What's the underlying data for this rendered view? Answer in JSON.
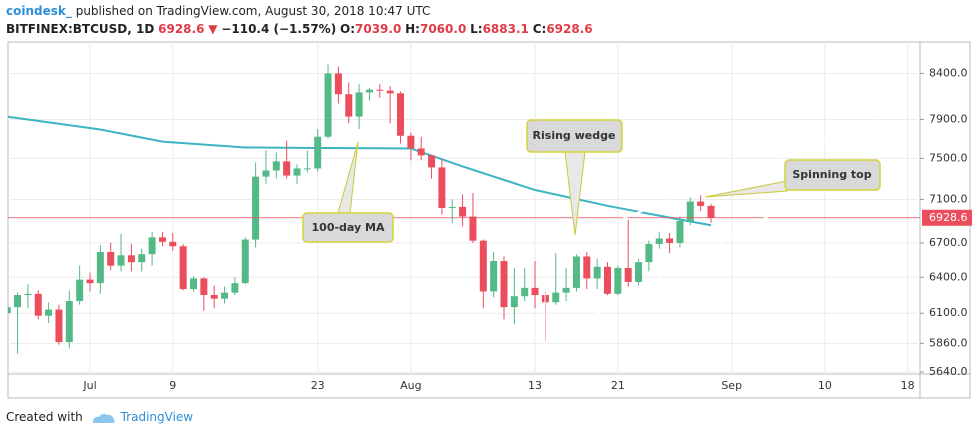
{
  "header": {
    "author": "coindesk_",
    "published": "published on TradingView.com, August 30, 2018 10:47 UTC",
    "symbol": "BITFINEX:BTCUSD, 1D",
    "last": "6928.6",
    "arrow": "▼",
    "change": "−110.4 (−1.57%)",
    "ohlc": [
      {
        "label": "O:",
        "value": "7039.0"
      },
      {
        "label": "H:",
        "value": "7060.0"
      },
      {
        "label": "L:",
        "value": "6883.1"
      },
      {
        "label": "C:",
        "value": "6928.6"
      }
    ]
  },
  "footer": {
    "created": "Created with",
    "brand": "TradingView"
  },
  "chart_data": {
    "type": "candlestick",
    "log_scale": true,
    "grid": true,
    "up_color": "#53b987",
    "down_color": "#eb4d5c",
    "x": [
      "2018-06-23",
      "2018-06-24",
      "2018-06-25",
      "2018-06-26",
      "2018-06-27",
      "2018-06-28",
      "2018-06-29",
      "2018-06-30",
      "2018-07-01",
      "2018-07-02",
      "2018-07-03",
      "2018-07-04",
      "2018-07-05",
      "2018-07-06",
      "2018-07-07",
      "2018-07-08",
      "2018-07-09",
      "2018-07-10",
      "2018-07-11",
      "2018-07-12",
      "2018-07-13",
      "2018-07-14",
      "2018-07-15",
      "2018-07-16",
      "2018-07-17",
      "2018-07-18",
      "2018-07-19",
      "2018-07-20",
      "2018-07-21",
      "2018-07-22",
      "2018-07-23",
      "2018-07-24",
      "2018-07-25",
      "2018-07-26",
      "2018-07-27",
      "2018-07-28",
      "2018-07-29",
      "2018-07-30",
      "2018-07-31",
      "2018-08-01",
      "2018-08-02",
      "2018-08-03",
      "2018-08-04",
      "2018-08-05",
      "2018-08-06",
      "2018-08-07",
      "2018-08-08",
      "2018-08-09",
      "2018-08-10",
      "2018-08-11",
      "2018-08-12",
      "2018-08-13",
      "2018-08-14",
      "2018-08-15",
      "2018-08-16",
      "2018-08-17",
      "2018-08-18",
      "2018-08-19",
      "2018-08-20",
      "2018-08-21",
      "2018-08-22",
      "2018-08-23",
      "2018-08-24",
      "2018-08-25",
      "2018-08-26",
      "2018-08-27",
      "2018-08-28",
      "2018-08-29",
      "2018-08-30"
    ],
    "open": [
      6100,
      6150,
      6250,
      6260,
      6080,
      6130,
      5870,
      6200,
      6380,
      6350,
      6620,
      6500,
      6590,
      6530,
      6600,
      6750,
      6710,
      6670,
      6300,
      6390,
      6250,
      6220,
      6270,
      6350,
      6730,
      7320,
      7380,
      7470,
      7330,
      7400,
      7400,
      7720,
      8400,
      8170,
      7930,
      8190,
      8220,
      8210,
      8180,
      7730,
      7600,
      7530,
      7410,
      7020,
      7030,
      6940,
      6720,
      6280,
      6540,
      6150,
      6240,
      6310,
      6250,
      6190,
      6270,
      6310,
      6580,
      6390,
      6490,
      6260,
      6480,
      6360,
      6530,
      6690,
      6740,
      6700,
      6900,
      7080,
      7039
    ],
    "high": [
      6250,
      6270,
      6340,
      6290,
      6190,
      6170,
      6290,
      6500,
      6440,
      6680,
      6700,
      6780,
      6690,
      6650,
      6800,
      6800,
      6790,
      6690,
      6410,
      6400,
      6330,
      6320,
      6400,
      6750,
      7460,
      7580,
      7560,
      7680,
      7440,
      7580,
      7800,
      8500,
      8480,
      8300,
      8280,
      8240,
      8280,
      8260,
      8200,
      7760,
      7720,
      7540,
      7500,
      7100,
      7150,
      7160,
      6730,
      6620,
      6580,
      6480,
      6480,
      6540,
      6280,
      6610,
      6480,
      6600,
      6620,
      6560,
      6530,
      6500,
      6910,
      6560,
      6720,
      6800,
      6790,
      6940,
      7120,
      7140,
      7060
    ],
    "low": [
      6050,
      5780,
      6140,
      6050,
      6020,
      5850,
      5820,
      6170,
      6280,
      6260,
      6460,
      6450,
      6450,
      6450,
      6500,
      6670,
      6630,
      6290,
      6280,
      6120,
      6140,
      6180,
      6250,
      6340,
      6660,
      7250,
      7300,
      7300,
      7250,
      7360,
      7370,
      7700,
      8070,
      7860,
      7800,
      8100,
      8130,
      7860,
      7650,
      7480,
      7480,
      7300,
      6960,
      6880,
      6850,
      6700,
      6140,
      6230,
      6050,
      6010,
      6200,
      6140,
      5880,
      6170,
      6200,
      6280,
      6300,
      6300,
      6250,
      6250,
      6320,
      6330,
      6450,
      6650,
      6610,
      6660,
      6860,
      6990,
      6883.1
    ],
    "close": [
      6150,
      6250,
      6260,
      6080,
      6130,
      5870,
      6200,
      6380,
      6350,
      6620,
      6500,
      6590,
      6530,
      6600,
      6750,
      6710,
      6670,
      6300,
      6390,
      6250,
      6220,
      6270,
      6350,
      6730,
      7320,
      7380,
      7470,
      7330,
      7400,
      7400,
      7720,
      8400,
      8170,
      7930,
      8190,
      8220,
      8210,
      8180,
      7730,
      7600,
      7530,
      7410,
      7020,
      7030,
      6940,
      6720,
      6280,
      6540,
      6150,
      6240,
      6310,
      6250,
      6190,
      6270,
      6310,
      6580,
      6390,
      6490,
      6260,
      6480,
      6360,
      6530,
      6690,
      6740,
      6700,
      6900,
      7080,
      7039,
      6928.6
    ],
    "ma": {
      "color": "#3cb4c4",
      "x": [
        "2018-06-23",
        "2018-07-02",
        "2018-07-08",
        "2018-07-16",
        "2018-07-23",
        "2018-08-01",
        "2018-08-06",
        "2018-08-13",
        "2018-08-20",
        "2018-08-26",
        "2018-08-30"
      ],
      "values": [
        7930,
        7795,
        7670,
        7610,
        7605,
        7600,
        7420,
        7190,
        7040,
        6930,
        6860
      ]
    },
    "last_price": 6928.6,
    "annotations": [
      "Rising wedge",
      "100-day MA",
      "Spinning top"
    ],
    "ylim": [
      5640,
      8760
    ],
    "yticks": [
      {
        "value": 5640,
        "label": "5640.0"
      },
      {
        "value": 5860,
        "label": "5860.0"
      },
      {
        "value": 6100,
        "label": "6100.0"
      },
      {
        "value": 6400,
        "label": "6400.0"
      },
      {
        "value": 6700,
        "label": "6700.0"
      },
      {
        "value": 7100,
        "label": "7100.0"
      },
      {
        "value": 7500,
        "label": "7500.0"
      },
      {
        "value": 7900,
        "label": "7900.0"
      },
      {
        "value": 8400,
        "label": "8400.0"
      }
    ],
    "xticks": [
      {
        "value": "2018-07-01",
        "label": "Jul"
      },
      {
        "value": "2018-07-09",
        "label": "9"
      },
      {
        "value": "2018-07-23",
        "label": "23"
      },
      {
        "value": "2018-08-01",
        "label": "Aug"
      },
      {
        "value": "2018-08-13",
        "label": "13"
      },
      {
        "value": "2018-08-21",
        "label": "21"
      },
      {
        "value": "2018-09-01",
        "label": "Sep"
      },
      {
        "value": "2018-09-10",
        "label": "10"
      },
      {
        "value": "2018-09-18",
        "label": "18"
      }
    ]
  }
}
